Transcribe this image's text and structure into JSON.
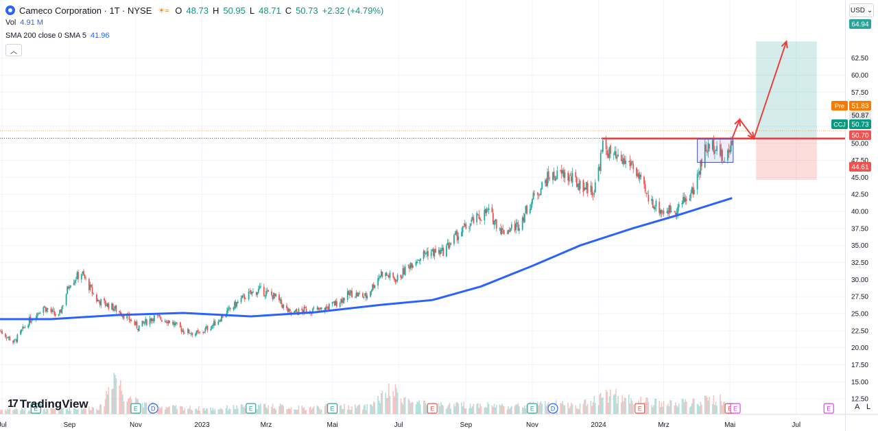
{
  "header": {
    "title": "Cameco Corporation · 1T · NYSE",
    "o_label": "O",
    "o_value": "48.73",
    "h_label": "H",
    "h_value": "50.95",
    "l_label": "L",
    "l_value": "48.71",
    "c_label": "C",
    "c_value": "50.73",
    "change": "+2.32 (+4.79%)"
  },
  "indicators": {
    "vol_label": "Vol",
    "vol_value": "4.91 M",
    "sma_label": "SMA 200 close 0 SMA 5",
    "sma_value": "41.96"
  },
  "toolbar": {
    "currency": "USD",
    "collapse_icon": "chevron-up-icon"
  },
  "branding": {
    "logo_text": "TradingView"
  },
  "corner_buttons": {
    "auto": "A",
    "log": "L"
  },
  "colors": {
    "up": "#26a69a",
    "down": "#ef5350",
    "sma": "#2962ff",
    "resistance": "#ef3b3b",
    "target_fill": "#b2dfdb",
    "stop_fill": "#ffcdd2",
    "last": "#089981"
  },
  "chart_data": {
    "type": "candlestick",
    "symbol": "CCJ",
    "y_ticks": [
      12.5,
      15,
      17.5,
      20,
      22.5,
      25,
      27.5,
      30,
      32.5,
      35,
      37.5,
      40,
      42.5,
      45,
      47.5,
      50,
      52.5,
      55,
      57.5,
      60,
      62.5
    ],
    "y_tick_labels": [
      "12.50",
      "15.00",
      "17.50",
      "20.00",
      "22.50",
      "25.00",
      "27.50",
      "30.00",
      "32.50",
      "35.00",
      "37.50",
      "40.00",
      "42.50",
      "45.00",
      "47.50",
      "50.00",
      "52.50",
      "55.00",
      "57.50",
      "60.00",
      "62.50"
    ],
    "ylim": [
      10.3,
      68
    ],
    "x_ticks": [
      "Jul",
      "Sep",
      "Nov",
      "2023",
      "Mrz",
      "Mai",
      "Jul",
      "Sep",
      "Nov",
      "2024",
      "Mrz",
      "Mai",
      "Jul"
    ],
    "x_tick_dates": [
      "2022-07-01",
      "2022-09-01",
      "2022-11-01",
      "2023-01-01",
      "2023-03-01",
      "2023-05-01",
      "2023-07-01",
      "2023-09-01",
      "2023-11-01",
      "2024-01-01",
      "2024-03-01",
      "2024-05-01",
      "2024-07-01"
    ],
    "x_range": [
      "2022-06-29",
      "2024-08-15"
    ],
    "price_path": [
      [
        "2022-06-29",
        22.5
      ],
      [
        "2022-07-12",
        20.8
      ],
      [
        "2022-07-25",
        23.8
      ],
      [
        "2022-08-08",
        26.0
      ],
      [
        "2022-08-22",
        24.5
      ],
      [
        "2022-09-01",
        29.5
      ],
      [
        "2022-09-12",
        31.0
      ],
      [
        "2022-09-26",
        27.0
      ],
      [
        "2022-10-10",
        26.0
      ],
      [
        "2022-10-24",
        24.5
      ],
      [
        "2022-11-03",
        23.0
      ],
      [
        "2022-11-17",
        24.5
      ],
      [
        "2022-12-01",
        24.0
      ],
      [
        "2022-12-15",
        22.5
      ],
      [
        "2022-12-29",
        22.0
      ],
      [
        "2023-01-12",
        23.5
      ],
      [
        "2023-01-26",
        25.5
      ],
      [
        "2023-02-09",
        27.5
      ],
      [
        "2023-02-23",
        28.5
      ],
      [
        "2023-03-09",
        27.5
      ],
      [
        "2023-03-23",
        25.0
      ],
      [
        "2023-04-06",
        25.5
      ],
      [
        "2023-04-20",
        25.5
      ],
      [
        "2023-05-04",
        26.5
      ],
      [
        "2023-05-18",
        28.0
      ],
      [
        "2023-06-01",
        27.5
      ],
      [
        "2023-06-15",
        31.0
      ],
      [
        "2023-06-29",
        30.0
      ],
      [
        "2023-07-13",
        32.5
      ],
      [
        "2023-07-27",
        34.0
      ],
      [
        "2023-08-10",
        34.0
      ],
      [
        "2023-08-24",
        36.5
      ],
      [
        "2023-09-07",
        38.5
      ],
      [
        "2023-09-21",
        40.0
      ],
      [
        "2023-10-05",
        37.0
      ],
      [
        "2023-10-19",
        38.0
      ],
      [
        "2023-11-02",
        42.0
      ],
      [
        "2023-11-16",
        45.0
      ],
      [
        "2023-11-30",
        45.5
      ],
      [
        "2023-12-14",
        44.0
      ],
      [
        "2023-12-28",
        43.0
      ],
      [
        "2024-01-05",
        49.5
      ],
      [
        "2024-01-18",
        47.5
      ],
      [
        "2024-02-01",
        47.0
      ],
      [
        "2024-02-15",
        42.0
      ],
      [
        "2024-02-29",
        40.0
      ],
      [
        "2024-03-14",
        40.5
      ],
      [
        "2024-03-28",
        43.0
      ],
      [
        "2024-04-08",
        49.0
      ],
      [
        "2024-04-18",
        50.0
      ],
      [
        "2024-04-26",
        47.0
      ],
      [
        "2024-05-03",
        50.73
      ]
    ],
    "sma200": [
      [
        "2022-06-29",
        24.2
      ],
      [
        "2022-08-15",
        24.2
      ],
      [
        "2022-10-15",
        24.8
      ],
      [
        "2022-12-15",
        25.1
      ],
      [
        "2023-02-15",
        24.6
      ],
      [
        "2023-04-15",
        25.2
      ],
      [
        "2023-06-15",
        26.3
      ],
      [
        "2023-08-01",
        27.0
      ],
      [
        "2023-09-15",
        29.0
      ],
      [
        "2023-11-01",
        32.0
      ],
      [
        "2023-12-15",
        35.0
      ],
      [
        "2024-02-01",
        37.5
      ],
      [
        "2024-03-15",
        39.5
      ],
      [
        "2024-05-03",
        41.96
      ]
    ],
    "resistance": {
      "from": "2024-01-04",
      "to": "2024-08-15",
      "price": 50.7
    },
    "consolidation_box": {
      "from": "2024-04-01",
      "to": "2024-05-04",
      "low": 47.2,
      "high": 50.6
    },
    "position": {
      "from": "2024-05-25",
      "to": "2024-07-20",
      "entry": 50.7,
      "target": 64.94,
      "stop": 44.61
    },
    "path_arrow": [
      [
        "2024-05-03",
        50.7
      ],
      [
        "2024-05-10",
        53.5
      ],
      [
        "2024-05-23",
        50.7
      ],
      [
        "2024-06-22",
        64.94
      ]
    ],
    "volume": [
      [
        "2022-06-29",
        0.25
      ],
      [
        "2022-07-15",
        0.3
      ],
      [
        "2022-08-01",
        0.2
      ],
      [
        "2022-08-20",
        0.28
      ],
      [
        "2022-09-10",
        0.35
      ],
      [
        "2022-10-01",
        0.4
      ],
      [
        "2022-10-12",
        2.6
      ],
      [
        "2022-10-20",
        1.4
      ],
      [
        "2022-11-01",
        0.7
      ],
      [
        "2022-11-15",
        0.5
      ],
      [
        "2022-12-01",
        0.4
      ],
      [
        "2022-12-20",
        0.35
      ],
      [
        "2023-01-10",
        0.3
      ],
      [
        "2023-02-01",
        0.4
      ],
      [
        "2023-03-01",
        0.5
      ],
      [
        "2023-04-01",
        0.35
      ],
      [
        "2023-05-01",
        0.45
      ],
      [
        "2023-06-01",
        0.4
      ],
      [
        "2023-06-25",
        1.4
      ],
      [
        "2023-07-15",
        0.6
      ],
      [
        "2023-08-15",
        0.5
      ],
      [
        "2023-09-15",
        0.55
      ],
      [
        "2023-10-15",
        0.45
      ],
      [
        "2023-11-15",
        0.6
      ],
      [
        "2023-12-15",
        0.5
      ],
      [
        "2024-01-10",
        1.2
      ],
      [
        "2024-02-01",
        0.8
      ],
      [
        "2024-03-01",
        0.6
      ],
      [
        "2024-04-01",
        0.7
      ],
      [
        "2024-04-20",
        0.9
      ],
      [
        "2024-05-03",
        0.5
      ]
    ],
    "event_markers": [
      {
        "date": "2022-08-01",
        "label": "E",
        "kind": "earn-pos"
      },
      {
        "date": "2022-11-01",
        "label": "E",
        "kind": "earn-pos"
      },
      {
        "date": "2022-11-17",
        "label": "D",
        "kind": "div"
      },
      {
        "date": "2023-02-15",
        "label": "E",
        "kind": "earn-pos"
      },
      {
        "date": "2023-05-01",
        "label": "E",
        "kind": "earn-pos"
      },
      {
        "date": "2023-08-01",
        "label": "E",
        "kind": "earn-neg"
      },
      {
        "date": "2023-11-01",
        "label": "E",
        "kind": "earn-pos"
      },
      {
        "date": "2023-11-20",
        "label": "D",
        "kind": "div"
      },
      {
        "date": "2024-02-08",
        "label": "E",
        "kind": "earn-neg"
      },
      {
        "date": "2024-05-01",
        "label": "E",
        "kind": "earn-neg"
      },
      {
        "date": "2024-05-06",
        "label": "E",
        "kind": "earn-fut"
      },
      {
        "date": "2024-07-31",
        "label": "E",
        "kind": "earn-fut"
      }
    ],
    "price_tags": [
      {
        "name": "target",
        "value": 64.94,
        "label": "64.94",
        "color": "#26a69a"
      },
      {
        "name": "premarket",
        "value": 51.83,
        "label": "51.83",
        "prefix": "Pre",
        "color": "#f57c00"
      },
      {
        "name": "prev",
        "value": 50.87,
        "label": "50.87",
        "color": "#e8e8e8"
      },
      {
        "name": "last",
        "value": 50.73,
        "label": "50.73",
        "prefix": "CCJ",
        "color": "#089981"
      },
      {
        "name": "entry",
        "value": 50.7,
        "label": "50.70",
        "color": "#ef5350"
      },
      {
        "name": "stop",
        "value": 44.61,
        "label": "44.61",
        "color": "#ef5350"
      }
    ]
  }
}
